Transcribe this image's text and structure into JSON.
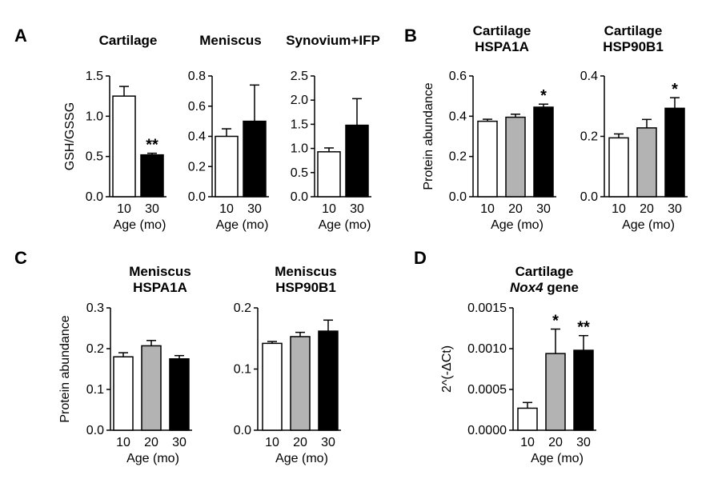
{
  "figure": {
    "panels": [
      {
        "letter": "A"
      },
      {
        "letter": "B"
      },
      {
        "letter": "C"
      },
      {
        "letter": "D"
      }
    ]
  },
  "chart_data": [
    {
      "panel": "A",
      "type": "bar",
      "title": [
        "Cartilage"
      ],
      "xlabel": "Age (mo)",
      "ylabel": "GSH/GSSG",
      "categories": [
        "10",
        "30"
      ],
      "values": [
        1.25,
        0.52
      ],
      "errors": [
        0.12,
        0.02
      ],
      "fills": [
        "#ffffff",
        "#000000"
      ],
      "significance": [
        "",
        "**"
      ],
      "ylim": [
        0,
        1.5
      ],
      "yticks": [
        0,
        0.5,
        1.0,
        1.5
      ],
      "ytick_labels": [
        "0.0",
        "0.5",
        "1.0",
        "1.5"
      ]
    },
    {
      "panel": "A",
      "type": "bar",
      "title": [
        "Meniscus"
      ],
      "xlabel": "Age (mo)",
      "ylabel": "",
      "categories": [
        "10",
        "30"
      ],
      "values": [
        0.4,
        0.5
      ],
      "errors": [
        0.05,
        0.24
      ],
      "fills": [
        "#ffffff",
        "#000000"
      ],
      "significance": [
        "",
        ""
      ],
      "ylim": [
        0,
        0.8
      ],
      "yticks": [
        0,
        0.2,
        0.4,
        0.6,
        0.8
      ],
      "ytick_labels": [
        "0.0",
        "0.2",
        "0.4",
        "0.6",
        "0.8"
      ]
    },
    {
      "panel": "A",
      "type": "bar",
      "title": [
        "Synovium+IFP"
      ],
      "xlabel": "Age (mo)",
      "ylabel": "",
      "categories": [
        "10",
        "30"
      ],
      "values": [
        0.93,
        1.48
      ],
      "errors": [
        0.08,
        0.55
      ],
      "fills": [
        "#ffffff",
        "#000000"
      ],
      "significance": [
        "",
        ""
      ],
      "ylim": [
        0,
        2.5
      ],
      "yticks": [
        0,
        0.5,
        1.0,
        1.5,
        2.0,
        2.5
      ],
      "ytick_labels": [
        "0.0",
        "0.5",
        "1.0",
        "1.5",
        "2.0",
        "2.5"
      ]
    },
    {
      "panel": "B",
      "type": "bar",
      "title": [
        "Cartilage",
        "HSPA1A"
      ],
      "xlabel": "Age (mo)",
      "ylabel": "Protein abundance",
      "categories": [
        "10",
        "20",
        "30"
      ],
      "values": [
        0.375,
        0.395,
        0.445
      ],
      "errors": [
        0.01,
        0.015,
        0.015
      ],
      "fills": [
        "#ffffff",
        "#b3b3b3",
        "#000000"
      ],
      "significance": [
        "",
        "",
        "*"
      ],
      "ylim": [
        0,
        0.6
      ],
      "yticks": [
        0,
        0.2,
        0.4,
        0.6
      ],
      "ytick_labels": [
        "0.0",
        "0.2",
        "0.4",
        "0.6"
      ]
    },
    {
      "panel": "B",
      "type": "bar",
      "title": [
        "Cartilage",
        "HSP90B1"
      ],
      "xlabel": "Age (mo)",
      "ylabel": "",
      "categories": [
        "10",
        "20",
        "30"
      ],
      "values": [
        0.195,
        0.228,
        0.293
      ],
      "errors": [
        0.013,
        0.028,
        0.035
      ],
      "fills": [
        "#ffffff",
        "#b3b3b3",
        "#000000"
      ],
      "significance": [
        "",
        "",
        "*"
      ],
      "ylim": [
        0,
        0.4
      ],
      "yticks": [
        0,
        0.2,
        0.4
      ],
      "ytick_labels": [
        "0.0",
        "0.2",
        "0.4"
      ]
    },
    {
      "panel": "C",
      "type": "bar",
      "title": [
        "Meniscus",
        "HSPA1A"
      ],
      "xlabel": "Age (mo)",
      "ylabel": "Protein abundance",
      "categories": [
        "10",
        "20",
        "30"
      ],
      "values": [
        0.18,
        0.207,
        0.175
      ],
      "errors": [
        0.01,
        0.013,
        0.008
      ],
      "fills": [
        "#ffffff",
        "#b3b3b3",
        "#000000"
      ],
      "significance": [
        "",
        "",
        ""
      ],
      "ylim": [
        0,
        0.3
      ],
      "yticks": [
        0,
        0.1,
        0.2,
        0.3
      ],
      "ytick_labels": [
        "0.0",
        "0.1",
        "0.2",
        "0.3"
      ]
    },
    {
      "panel": "C",
      "type": "bar",
      "title": [
        "Meniscus",
        "HSP90B1"
      ],
      "xlabel": "Age (mo)",
      "ylabel": "",
      "categories": [
        "10",
        "20",
        "30"
      ],
      "values": [
        0.142,
        0.153,
        0.162
      ],
      "errors": [
        0.003,
        0.007,
        0.018
      ],
      "fills": [
        "#ffffff",
        "#b3b3b3",
        "#000000"
      ],
      "significance": [
        "",
        "",
        ""
      ],
      "ylim": [
        0,
        0.2
      ],
      "yticks": [
        0,
        0.1,
        0.2
      ],
      "ytick_labels": [
        "0.0",
        "0.1",
        "0.2"
      ]
    },
    {
      "panel": "D",
      "type": "bar",
      "title": [
        "Cartilage",
        "Nox4 gene"
      ],
      "title_italic": "Nox4",
      "xlabel": "Age (mo)",
      "ylabel": "2^(-ΔCt)",
      "categories": [
        "10",
        "20",
        "30"
      ],
      "values": [
        0.00027,
        0.00094,
        0.00098
      ],
      "errors": [
        7e-05,
        0.0003,
        0.00018
      ],
      "fills": [
        "#ffffff",
        "#b3b3b3",
        "#000000"
      ],
      "significance": [
        "",
        "*",
        "**"
      ],
      "ylim": [
        0,
        0.0015
      ],
      "yticks": [
        0,
        0.0005,
        0.001,
        0.0015
      ],
      "ytick_labels": [
        "0.0000",
        "0.0005",
        "0.0010",
        "0.0015"
      ]
    }
  ]
}
